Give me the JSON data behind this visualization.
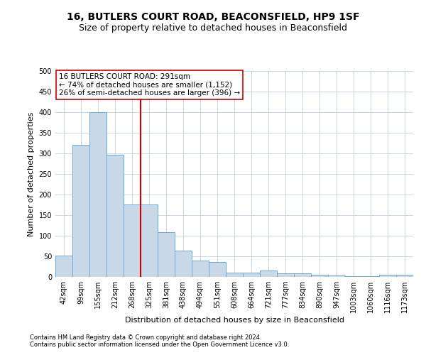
{
  "title": "16, BUTLERS COURT ROAD, BEACONSFIELD, HP9 1SF",
  "subtitle": "Size of property relative to detached houses in Beaconsfield",
  "xlabel": "Distribution of detached houses by size in Beaconsfield",
  "ylabel": "Number of detached properties",
  "footnote1": "Contains HM Land Registry data © Crown copyright and database right 2024.",
  "footnote2": "Contains public sector information licensed under the Open Government Licence v3.0.",
  "categories": [
    "42sqm",
    "99sqm",
    "155sqm",
    "212sqm",
    "268sqm",
    "325sqm",
    "381sqm",
    "438sqm",
    "494sqm",
    "551sqm",
    "608sqm",
    "664sqm",
    "721sqm",
    "777sqm",
    "834sqm",
    "890sqm",
    "947sqm",
    "1003sqm",
    "1060sqm",
    "1116sqm",
    "1173sqm"
  ],
  "values": [
    52,
    320,
    400,
    297,
    176,
    176,
    108,
    64,
    40,
    37,
    10,
    10,
    15,
    9,
    9,
    6,
    3,
    2,
    1,
    5,
    5
  ],
  "bar_color": "#c9d9e8",
  "bar_edge_color": "#6fa8d6",
  "vline_color": "#cc0000",
  "annotation_text": "16 BUTLERS COURT ROAD: 291sqm\n← 74% of detached houses are smaller (1,152)\n26% of semi-detached houses are larger (396) →",
  "annotation_box_color": "#ffffff",
  "annotation_box_edge": "#cc0000",
  "ylim": [
    0,
    500
  ],
  "yticks": [
    0,
    50,
    100,
    150,
    200,
    250,
    300,
    350,
    400,
    450,
    500
  ],
  "bg_color": "#ffffff",
  "grid_color": "#c8d8e8",
  "title_fontsize": 10,
  "subtitle_fontsize": 9,
  "axis_label_fontsize": 8,
  "tick_fontsize": 7,
  "footnote_fontsize": 6,
  "annotation_fontsize": 7.5
}
